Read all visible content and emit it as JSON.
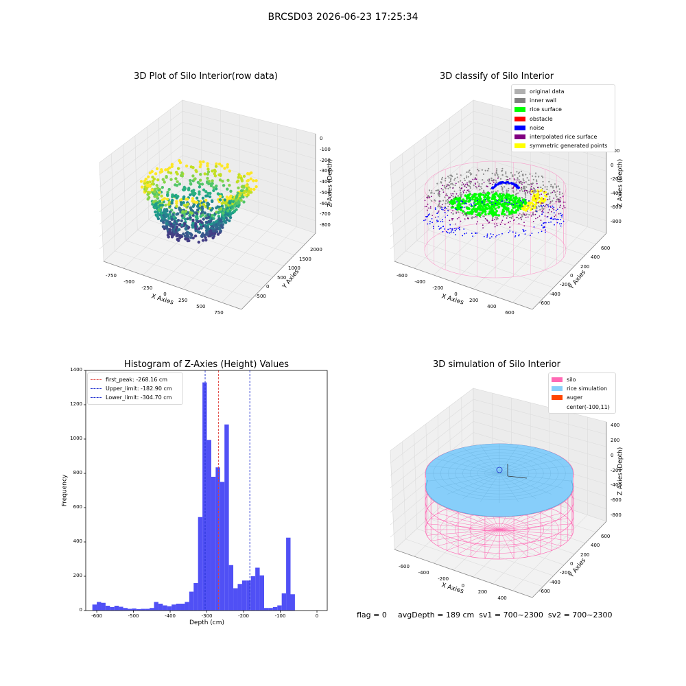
{
  "suptitle": "BRCSD03 2026-06-23 17:25:34",
  "footer": {
    "flag": "flag = 0",
    "stats": "avgDepth = 189 cm  sv1 = 700~2300  sv2 = 700~2300"
  },
  "colors": {
    "hist_bar": "#5050f5",
    "first_peak": "#e0403a",
    "limits": "#2030d0",
    "silo": "#ff69b4",
    "rice": "#87cefa",
    "auger": "#ff4500",
    "noise": "#0000ff",
    "surface": "#00ff00",
    "original": "#b0b0b0",
    "interp": "#800080",
    "symmetric": "#ffff00"
  },
  "chart_data": [
    {
      "type": "scatter",
      "title": "3D Plot of Silo Interior(row data)",
      "xlabel": "X Axies",
      "ylabel": "Y Axies",
      "zlabel": "Z Axies (Depth)",
      "x_ticks": [
        "-750",
        "-500",
        "-250",
        "0",
        "250",
        "500",
        "750"
      ],
      "y_ticks": [
        "-500",
        "0",
        "500",
        "1000",
        "1500",
        "2000"
      ],
      "z_ticks": [
        "0",
        "-100",
        "-200",
        "-300",
        "-400",
        "-500",
        "-600",
        "-700",
        "-800"
      ],
      "colormap": "viridis"
    },
    {
      "type": "scatter",
      "title": "3D classify of Silo Interior",
      "xlabel": "X Axies",
      "ylabel": "Y Axies",
      "zlabel": "Z Axies (Depth)",
      "x_ticks": [
        "-600",
        "-400",
        "-200",
        "0",
        "200",
        "400",
        "600"
      ],
      "y_ticks": [
        "-600",
        "-400",
        "-200",
        "0",
        "200",
        "400",
        "600"
      ],
      "z_ticks": [
        "200",
        "0",
        "-200",
        "-400",
        "-600",
        "-800"
      ],
      "legend": [
        {
          "label": "original data",
          "color": "#b0b0b0"
        },
        {
          "label": "inner wall",
          "color": "#808080"
        },
        {
          "label": "rice surface",
          "color": "#00ff00"
        },
        {
          "label": "obstacle",
          "color": "#ff0000"
        },
        {
          "label": "noise",
          "color": "#0000ff"
        },
        {
          "label": "interpolated rice surface",
          "color": "#800080"
        },
        {
          "label": "symmetric generated points",
          "color": "#ffff00"
        }
      ]
    },
    {
      "type": "bar",
      "title": "Histogram of Z-Axies (Height) Values",
      "xlabel": "Depth (cm)",
      "ylabel": "Frequency",
      "xlim": [
        -630,
        28
      ],
      "ylim": [
        0,
        1400
      ],
      "x_ticks": [
        -600,
        -500,
        -400,
        -300,
        -200,
        -100,
        0
      ],
      "y_ticks": [
        0,
        200,
        400,
        600,
        800,
        1000,
        1200,
        1400
      ],
      "bin_width": 12,
      "bin_starts": [
        -612,
        -600,
        -588,
        -576,
        -564,
        -552,
        -540,
        -528,
        -516,
        -504,
        -492,
        -480,
        -468,
        -456,
        -444,
        -432,
        -420,
        -408,
        -396,
        -384,
        -372,
        -360,
        -348,
        -336,
        -324,
        -312,
        -300,
        -288,
        -276,
        -264,
        -252,
        -240,
        -228,
        -216,
        -204,
        -192,
        -180,
        -168,
        -156,
        -144,
        -132,
        -120,
        -108,
        -96,
        -84,
        -72,
        -60,
        -48,
        -36,
        -24
      ],
      "values": [
        35,
        50,
        45,
        28,
        20,
        28,
        22,
        15,
        10,
        12,
        8,
        10,
        10,
        15,
        50,
        40,
        30,
        25,
        35,
        40,
        40,
        50,
        110,
        160,
        545,
        1330,
        995,
        780,
        835,
        750,
        1085,
        265,
        130,
        155,
        175,
        175,
        200,
        250,
        205,
        15,
        15,
        20,
        30,
        100,
        425,
        95,
        0,
        0,
        0,
        0
      ],
      "lines": [
        {
          "label": "first_peak: -268.16 cm",
          "x": -268.16,
          "color": "#e0403a"
        },
        {
          "label": "Upper_limit: -182.90 cm",
          "x": -182.9,
          "color": "#2030d0"
        },
        {
          "label": "Lower_limit: -304.70 cm",
          "x": -304.7,
          "color": "#2030d0"
        }
      ]
    },
    {
      "type": "surface",
      "title": "3D simulation of Silo Interior",
      "xlabel": "X Axies",
      "ylabel": "Y Axies",
      "zlabel": "Z Axies (Depth)",
      "x_ticks": [
        "-600",
        "-400",
        "-200",
        "0",
        "200",
        "400"
      ],
      "y_ticks": [
        "-600",
        "-400",
        "-200",
        "0",
        "200",
        "400",
        "600"
      ],
      "z_ticks": [
        "400",
        "200",
        "0",
        "-200",
        "-400",
        "-600",
        "-800"
      ],
      "legend": [
        {
          "label": "silo",
          "color": "#ff69b4"
        },
        {
          "label": "rice simulation",
          "color": "#87cefa"
        },
        {
          "label": "auger",
          "color": "#ff4500"
        },
        {
          "label": "center(-100,11)",
          "color": ""
        }
      ]
    }
  ]
}
